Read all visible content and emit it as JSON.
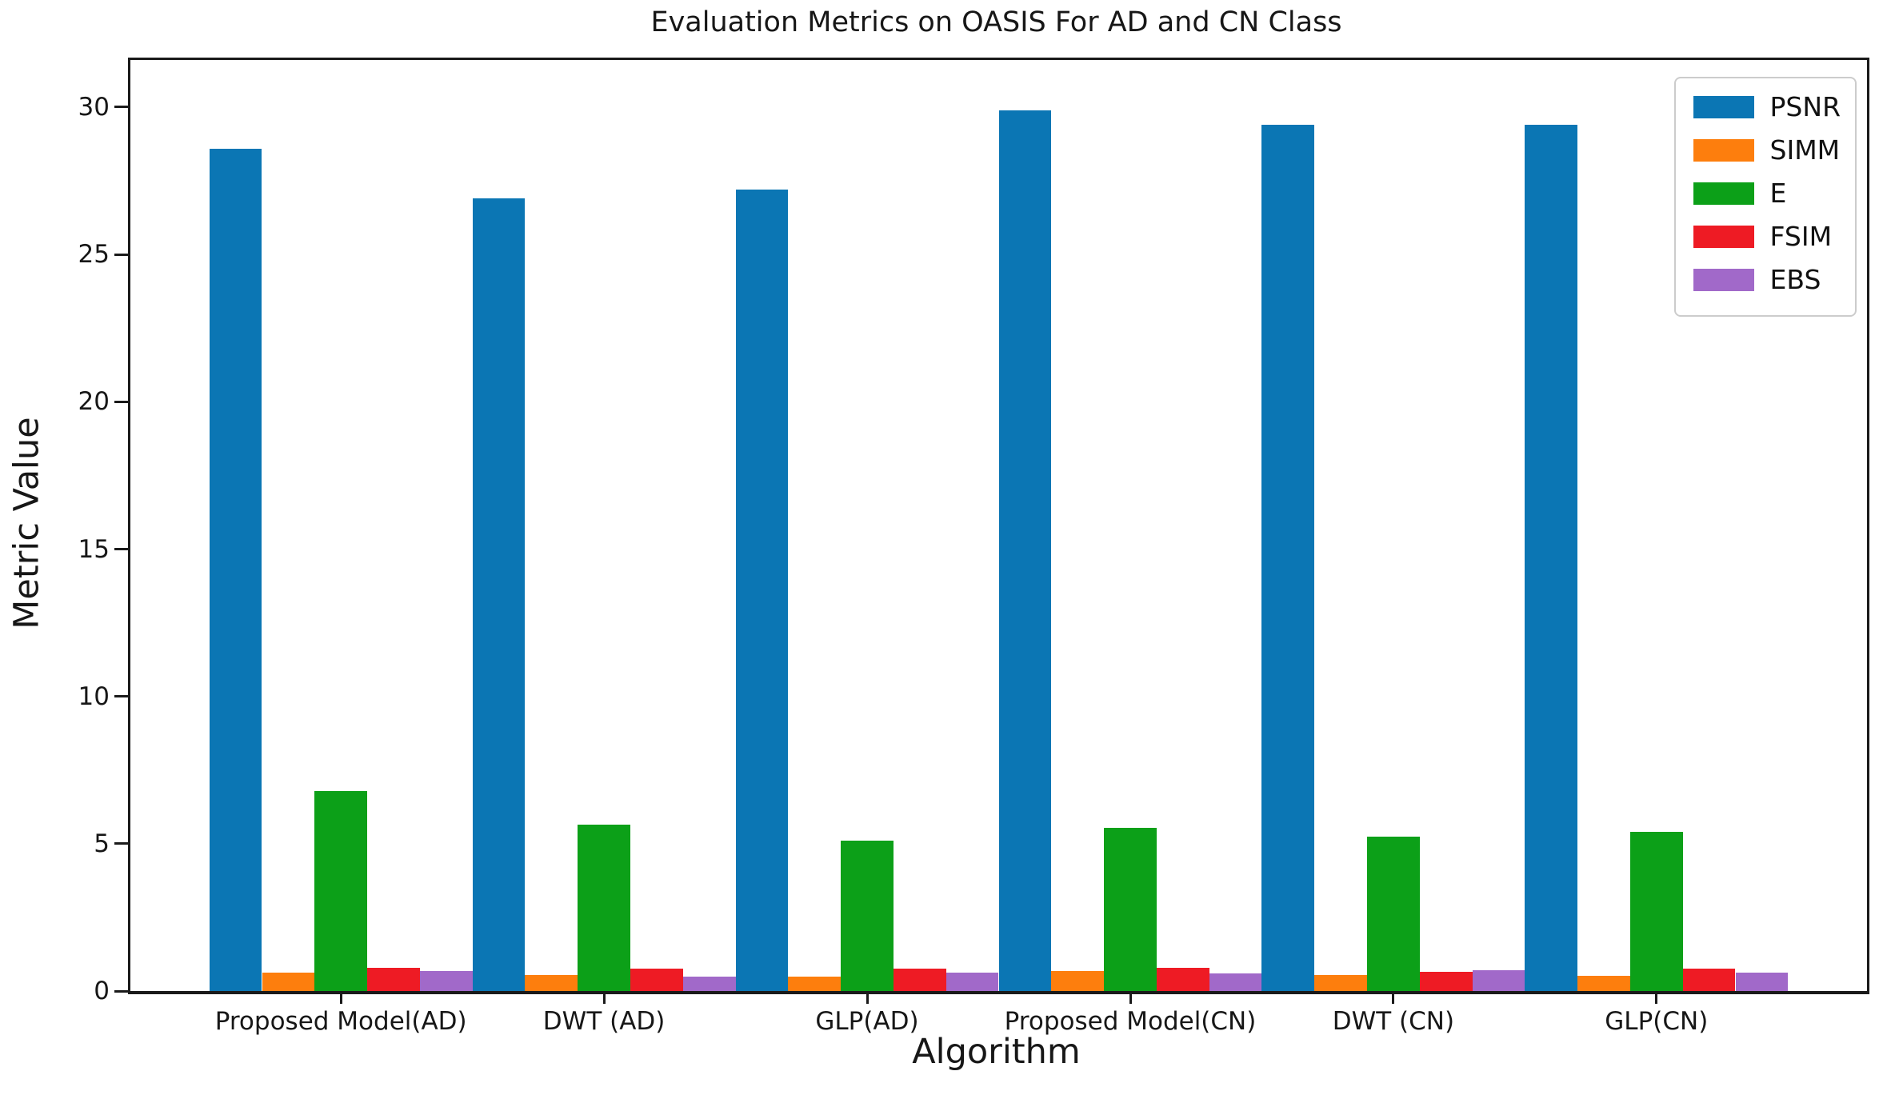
{
  "chart_data": {
    "type": "bar",
    "title": "Evaluation Metrics on OASIS For AD and CN Class",
    "xlabel": "Algorithm",
    "ylabel": "Metric Value",
    "categories": [
      "Proposed Model(AD)",
      "DWT (AD)",
      "GLP(AD)",
      "Proposed Model(CN)",
      "DWT (CN)",
      "GLP(CN)"
    ],
    "series": [
      {
        "name": "PSNR",
        "color": "#0b76b4",
        "values": [
          28.6,
          26.9,
          27.2,
          29.9,
          29.4,
          29.4
        ]
      },
      {
        "name": "SIMM",
        "color": "#fd7e0d",
        "values": [
          0.62,
          0.54,
          0.48,
          0.67,
          0.54,
          0.52
        ]
      },
      {
        "name": "E",
        "color": "#0ca018",
        "values": [
          6.8,
          5.65,
          5.1,
          5.55,
          5.25,
          5.4
        ]
      },
      {
        "name": "FSIM",
        "color": "#ee1b24",
        "values": [
          0.79,
          0.75,
          0.76,
          0.79,
          0.66,
          0.76
        ]
      },
      {
        "name": "EBS",
        "color": "#a169c9",
        "values": [
          0.68,
          0.5,
          0.63,
          0.6,
          0.72,
          0.63
        ]
      }
    ],
    "ylim": [
      0,
      31.6
    ],
    "yticks": [
      0,
      5,
      10,
      15,
      20,
      25,
      30
    ],
    "xlim_units": [
      -0.8,
      5.8
    ],
    "grid": false,
    "legend_position": "upper right"
  }
}
